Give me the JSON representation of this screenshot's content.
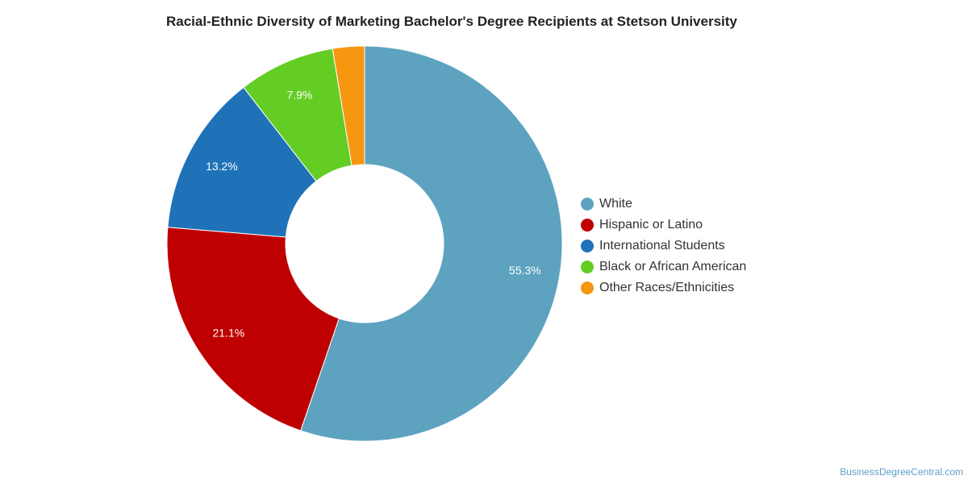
{
  "chart_data": {
    "type": "pie",
    "variant": "donut",
    "title": "Racial-Ethnic Diversity of Marketing Bachelor's Degree Recipients at Stetson University",
    "legend_position": "right",
    "slices": [
      {
        "label": "White",
        "value": 55.3,
        "color": "#5da3c0",
        "data_label": "55.3%"
      },
      {
        "label": "Hispanic or Latino",
        "value": 21.1,
        "color": "#bf0000",
        "data_label": "21.1%"
      },
      {
        "label": "International Students",
        "value": 13.2,
        "color": "#1f72b8",
        "data_label": "13.2%"
      },
      {
        "label": "Black or African American",
        "value": 7.9,
        "color": "#63cd24",
        "data_label": "7.9%"
      },
      {
        "label": "Other Races/Ethnicities",
        "value": 2.6,
        "color": "#f7960f",
        "data_label": ""
      }
    ]
  },
  "watermark": "BusinessDegreeCentral.com"
}
